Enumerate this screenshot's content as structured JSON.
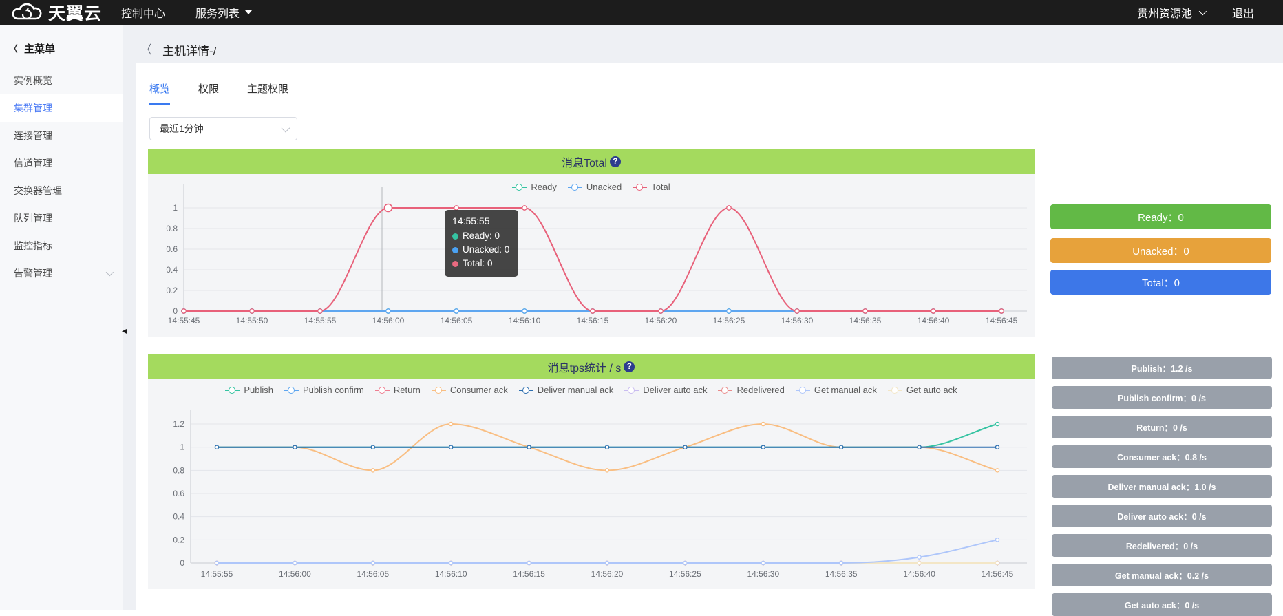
{
  "topbar": {
    "brand": "天翼云",
    "console": "控制中心",
    "services": "服务列表",
    "region": "贵州资源池",
    "logout": "退出"
  },
  "sidebar": {
    "title": "主菜单",
    "items": [
      {
        "label": "实例概览",
        "active": false,
        "expandable": false
      },
      {
        "label": "集群管理",
        "active": true,
        "expandable": false
      },
      {
        "label": "连接管理",
        "active": false,
        "expandable": false
      },
      {
        "label": "信道管理",
        "active": false,
        "expandable": false
      },
      {
        "label": "交换器管理",
        "active": false,
        "expandable": false
      },
      {
        "label": "队列管理",
        "active": false,
        "expandable": false
      },
      {
        "label": "监控指标",
        "active": false,
        "expandable": false
      },
      {
        "label": "告警管理",
        "active": false,
        "expandable": true
      }
    ]
  },
  "page": {
    "back": "〈",
    "title": "主机详情-/"
  },
  "tabs": [
    {
      "label": "概览",
      "active": true
    },
    {
      "label": "权限",
      "active": false
    },
    {
      "label": "主题权限",
      "active": false
    }
  ],
  "time_select": {
    "value": "最近1分钟"
  },
  "tooltip": {
    "title": "14:55:55",
    "rows": [
      {
        "name": "Ready",
        "value": "0",
        "color": "#35c3a2"
      },
      {
        "name": "Unacked",
        "value": "0",
        "color": "#4ba2f3"
      },
      {
        "name": "Total",
        "value": "0",
        "color": "#e96a80"
      }
    ]
  },
  "summary_buttons": [
    {
      "label": "Ready：0",
      "color": "#62b946"
    },
    {
      "label": "Unacked：0",
      "color": "#e7a23b"
    },
    {
      "label": "Total：0",
      "color": "#3d77e8"
    }
  ],
  "tps_badges": [
    {
      "label": "Publish：1.2 /s"
    },
    {
      "label": "Publish confirm：0 /s"
    },
    {
      "label": "Return：0 /s"
    },
    {
      "label": "Consumer ack：0.8 /s"
    },
    {
      "label": "Deliver manual ack：1.0 /s"
    },
    {
      "label": "Deliver auto ack：0 /s"
    },
    {
      "label": "Redelivered：0 /s"
    },
    {
      "label": "Get manual ack：0.2 /s"
    },
    {
      "label": "Get auto ack：0 /s"
    }
  ],
  "chart_data": [
    {
      "type": "line",
      "title": "消息Total",
      "help": "?",
      "legend_position": "top",
      "grid": true,
      "smooth": true,
      "xlabel": "",
      "ylabel": "",
      "ylim": [
        0,
        1.1
      ],
      "yticks": [
        0,
        0.2,
        0.4,
        0.6,
        0.8,
        1
      ],
      "categories": [
        "14:55:45",
        "14:55:50",
        "14:55:55",
        "14:56:00",
        "14:56:05",
        "14:56:10",
        "14:56:15",
        "14:56:20",
        "14:56:25",
        "14:56:30",
        "14:56:35",
        "14:56:40",
        "14:56:45"
      ],
      "series": [
        {
          "name": "Ready",
          "color": "#35c3a2",
          "values": [
            0,
            0,
            0,
            0,
            0,
            0,
            0,
            0,
            0,
            0,
            0,
            0,
            0
          ]
        },
        {
          "name": "Unacked",
          "color": "#5ea6f0",
          "values": [
            0,
            0,
            0,
            0,
            0,
            0,
            0,
            0,
            0,
            0,
            0,
            0,
            0
          ]
        },
        {
          "name": "Total",
          "color": "#e8617a",
          "values": [
            0,
            0,
            0,
            1,
            1,
            1,
            0,
            0,
            1,
            0,
            0,
            0,
            0
          ]
        }
      ],
      "emphasis": {
        "series": 2,
        "index": 3
      }
    },
    {
      "type": "line",
      "title": "消息tps统计 / s",
      "help": "?",
      "legend_position": "top",
      "grid": true,
      "smooth": true,
      "xlabel": "",
      "ylabel": "",
      "ylim": [
        0,
        1.3
      ],
      "yticks": [
        0,
        0.2,
        0.4,
        0.6,
        0.8,
        1,
        1.2
      ],
      "categories": [
        "14:55:55",
        "14:56:00",
        "14:56:05",
        "14:56:10",
        "14:56:15",
        "14:56:20",
        "14:56:25",
        "14:56:30",
        "14:56:35",
        "14:56:40",
        "14:56:45"
      ],
      "series": [
        {
          "name": "Publish",
          "color": "#35c3a2",
          "values": [
            1,
            1,
            1,
            1,
            1,
            1,
            1,
            1,
            1,
            1,
            1.2
          ]
        },
        {
          "name": "Publish confirm",
          "color": "#5ea6f0",
          "values": [
            0,
            0,
            0,
            0,
            0,
            0,
            0,
            0,
            0,
            0,
            0
          ]
        },
        {
          "name": "Return",
          "color": "#ee7f92",
          "values": [
            0,
            0,
            0,
            0,
            0,
            0,
            0,
            0,
            0,
            0,
            0
          ]
        },
        {
          "name": "Consumer ack",
          "color": "#f9be82",
          "values": [
            1,
            1,
            0.8,
            1.2,
            1,
            0.8,
            1,
            1.2,
            1,
            1,
            0.8
          ]
        },
        {
          "name": "Deliver manual ack",
          "color": "#2e6fb0",
          "values": [
            1,
            1,
            1,
            1,
            1,
            1,
            1,
            1,
            1,
            1,
            1
          ]
        },
        {
          "name": "Deliver auto ack",
          "color": "#c9bcf0",
          "values": [
            0,
            0,
            0,
            0,
            0,
            0,
            0,
            0,
            0,
            0,
            0
          ]
        },
        {
          "name": "Redelivered",
          "color": "#e98b8b",
          "values": [
            0,
            0,
            0,
            0,
            0,
            0,
            0,
            0,
            0,
            0,
            0
          ]
        },
        {
          "name": "Get manual ack",
          "color": "#aec6fa",
          "values": [
            0,
            0,
            0,
            0,
            0,
            0,
            0,
            0,
            0,
            0.05,
            0.2
          ]
        },
        {
          "name": "Get auto ack",
          "color": "#f3e6c6",
          "values": [
            0,
            0,
            0,
            0,
            0,
            0,
            0,
            0,
            0,
            0,
            0
          ]
        }
      ]
    }
  ]
}
